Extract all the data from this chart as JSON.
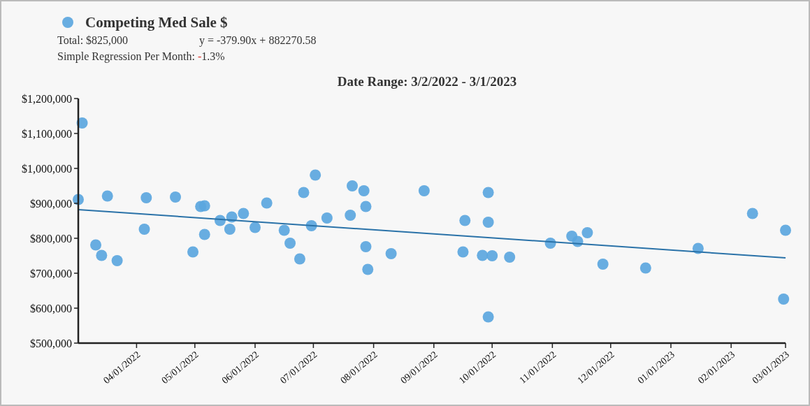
{
  "chart_data": {
    "type": "scatter",
    "title": "Date Range: 3/2/2022 - 3/1/2023",
    "annotations": [
      "Total: $825,000",
      "y = -379.90x + 882270.58",
      "Simple Regression Per Month: -1.3%"
    ],
    "legend": "top left",
    "series": [
      {
        "name": "Competing Med Sale $",
        "marker": "circle",
        "color": "#5ba6de",
        "x": [
          "2022-03-02",
          "2022-03-04",
          "2022-03-11",
          "2022-03-14",
          "2022-03-17",
          "2022-03-22",
          "2022-04-05",
          "2022-04-06",
          "2022-04-21",
          "2022-04-30",
          "2022-05-04",
          "2022-05-06",
          "2022-05-06",
          "2022-05-14",
          "2022-05-19",
          "2022-05-20",
          "2022-05-26",
          "2022-06-01",
          "2022-06-07",
          "2022-06-16",
          "2022-06-19",
          "2022-06-24",
          "2022-06-26",
          "2022-06-30",
          "2022-07-02",
          "2022-07-08",
          "2022-07-20",
          "2022-07-21",
          "2022-07-27",
          "2022-07-28",
          "2022-07-28",
          "2022-07-29",
          "2022-08-10",
          "2022-08-27",
          "2022-09-17",
          "2022-09-16",
          "2022-09-26",
          "2022-09-29",
          "2022-09-29",
          "2022-09-29",
          "2022-10-01",
          "2022-10-10",
          "2022-10-31",
          "2022-11-11",
          "2022-11-14",
          "2022-11-19",
          "2022-11-27",
          "2022-12-19",
          "2023-01-15",
          "2023-02-12",
          "2023-03-01",
          "2023-02-28"
        ],
        "values": [
          911000,
          1130000,
          781000,
          751000,
          921000,
          736000,
          826000,
          916000,
          918000,
          761000,
          891000,
          893000,
          811000,
          851000,
          826000,
          861000,
          871000,
          831000,
          901000,
          823000,
          786000,
          741000,
          931000,
          836000,
          981000,
          858000,
          866000,
          950000,
          936000,
          891000,
          776000,
          711000,
          756000,
          936000,
          851000,
          761000,
          751000,
          931000,
          846000,
          575000,
          750000,
          746000,
          786000,
          806000,
          791000,
          816000,
          726000,
          715000,
          771000,
          871000,
          823000,
          626000
        ]
      },
      {
        "type": "line",
        "color": "#2a72a8",
        "x": [
          "2022-03-02",
          "2023-03-01"
        ],
        "values": [
          882000,
          744000
        ]
      }
    ],
    "xlim": [
      "2022-03-02",
      "2023-03-01"
    ],
    "xticks": [
      {
        "value": "2022-04-01",
        "label": "04/01/2022"
      },
      {
        "value": "2022-05-01",
        "label": "05/01/2022"
      },
      {
        "value": "2022-06-01",
        "label": "06/01/2022"
      },
      {
        "value": "2022-07-01",
        "label": "07/01/2022"
      },
      {
        "value": "2022-08-01",
        "label": "08/01/2022"
      },
      {
        "value": "2022-09-01",
        "label": "09/01/2022"
      },
      {
        "value": "2022-10-01",
        "label": "10/01/2022"
      },
      {
        "value": "2022-11-01",
        "label": "11/01/2022"
      },
      {
        "value": "2022-12-01",
        "label": "12/01/2022"
      },
      {
        "value": "2023-01-01",
        "label": "01/01/2023"
      },
      {
        "value": "2023-02-01",
        "label": "02/01/2023"
      },
      {
        "value": "2023-03-01",
        "label": "03/01/2023"
      }
    ],
    "ylim": [
      500000,
      1200000
    ],
    "yticks": [
      {
        "value": 500000,
        "label": "$500,000"
      },
      {
        "value": 600000,
        "label": "$600,000"
      },
      {
        "value": 700000,
        "label": "$700,000"
      },
      {
        "value": 800000,
        "label": "$800,000"
      },
      {
        "value": 900000,
        "label": "$900,000"
      },
      {
        "value": 1000000,
        "label": "$1,000,000"
      },
      {
        "value": 1100000,
        "label": "$1,100,000"
      },
      {
        "value": 1200000,
        "label": "$1,200,000"
      }
    ]
  }
}
